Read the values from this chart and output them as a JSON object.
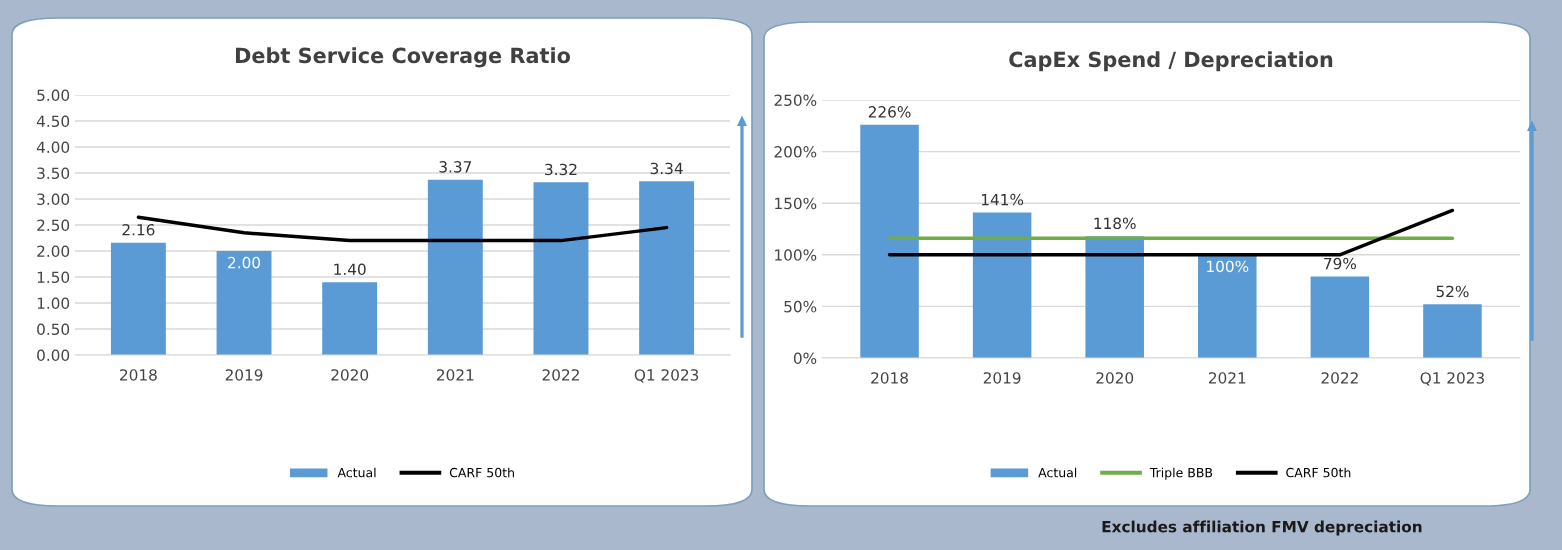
{
  "chart_data": [
    {
      "type": "bar",
      "title": "Debt Service Coverage Ratio",
      "categories": [
        "2018",
        "2019",
        "2020",
        "2021",
        "2022",
        "Q1 2023"
      ],
      "series": [
        {
          "name": "Actual",
          "type": "bar",
          "color": "#5b9bd5",
          "values": [
            2.16,
            2.0,
            1.4,
            3.37,
            3.32,
            3.34
          ],
          "value_labels": [
            "2.16",
            "2.00",
            "1.40",
            "3.37",
            "3.32",
            "3.34"
          ]
        },
        {
          "name": "CARF 50th",
          "type": "line",
          "color": "#000000",
          "values": [
            2.65,
            2.35,
            2.2,
            2.2,
            2.2,
            2.45
          ]
        }
      ],
      "ylim": [
        0,
        5
      ],
      "yticks": [
        {
          "value": 0,
          "label": "0.00"
        },
        {
          "value": 0.5,
          "label": "0.50"
        },
        {
          "value": 1,
          "label": "1.00"
        },
        {
          "value": 1.5,
          "label": "1.50"
        },
        {
          "value": 2,
          "label": "2.00"
        },
        {
          "value": 2.5,
          "label": "2.50"
        },
        {
          "value": 3,
          "label": "3.00"
        },
        {
          "value": 3.5,
          "label": "3.50"
        },
        {
          "value": 4,
          "label": "4.00"
        },
        {
          "value": 4.5,
          "label": "4.50"
        },
        {
          "value": 5,
          "label": "5.00"
        }
      ],
      "grid": "y",
      "legend": "bottom",
      "marker": "none"
    },
    {
      "type": "bar",
      "title": "CapEx Spend / Depreciation",
      "categories": [
        "2018",
        "2019",
        "2020",
        "2021",
        "2022",
        "Q1 2023"
      ],
      "series": [
        {
          "name": "Actual",
          "type": "bar",
          "color": "#5b9bd5",
          "values": [
            226,
            141,
            118,
            100,
            79,
            52
          ],
          "value_labels": [
            "226%",
            "141%",
            "118%",
            "100%",
            "79%",
            "52%"
          ]
        },
        {
          "name": "Triple BBB",
          "type": "line",
          "color": "#70ad47",
          "values": [
            116,
            116,
            116,
            116,
            116,
            116
          ]
        },
        {
          "name": "CARF 50th",
          "type": "line",
          "color": "#000000",
          "values": [
            100,
            100,
            100,
            100,
            100,
            143
          ]
        }
      ],
      "ylim": [
        0,
        250
      ],
      "yticks": [
        {
          "value": 0,
          "label": "0%"
        },
        {
          "value": 50,
          "label": "50%"
        },
        {
          "value": 100,
          "label": "100%"
        },
        {
          "value": 150,
          "label": "150%"
        },
        {
          "value": 200,
          "label": "200%"
        },
        {
          "value": 250,
          "label": "250%"
        }
      ],
      "grid": "y",
      "legend": "bottom",
      "marker": "none",
      "annotations": [
        "Excludes affiliation FMV depreciation"
      ]
    }
  ]
}
